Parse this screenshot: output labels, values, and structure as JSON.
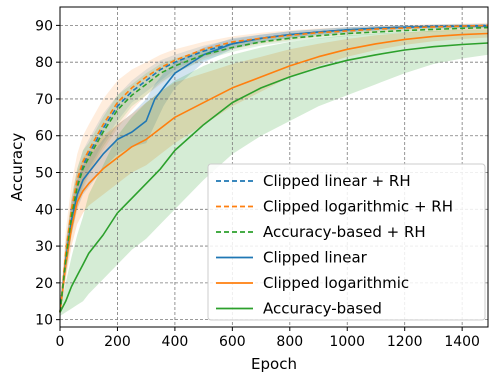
{
  "chart_data": {
    "type": "line",
    "xlabel": "Epoch",
    "ylabel": "Accuracy",
    "xlim": [
      0,
      1490
    ],
    "ylim": [
      8,
      95
    ],
    "xticks": [
      0,
      200,
      400,
      600,
      800,
      1000,
      1200,
      1400
    ],
    "yticks": [
      10,
      20,
      30,
      40,
      50,
      60,
      70,
      80,
      90
    ],
    "grid": true,
    "legend_position": "lower-right",
    "series": [
      {
        "name": "Clipped linear + RH",
        "color": "#1f77b4",
        "dash": true,
        "x": [
          0,
          20,
          40,
          60,
          80,
          100,
          150,
          200,
          250,
          300,
          350,
          400,
          500,
          600,
          700,
          800,
          900,
          1000,
          1100,
          1200,
          1300,
          1400,
          1490
        ],
        "y": [
          12,
          27,
          39,
          47,
          52,
          55,
          62,
          68,
          72,
          75,
          78,
          80,
          83,
          85,
          86.5,
          87.5,
          88.2,
          88.8,
          89.2,
          89.5,
          89.7,
          89.8,
          90
        ],
        "lower": [
          11,
          23,
          34,
          42,
          47,
          51,
          58,
          64,
          69,
          72,
          75,
          78,
          81.5,
          83.8,
          85.5,
          86.6,
          87.5,
          88.1,
          88.6,
          89,
          89.2,
          89.3,
          89.5
        ],
        "upper": [
          13,
          31,
          43,
          51,
          56,
          59,
          66,
          71,
          75,
          78,
          80.5,
          82,
          84.5,
          86.2,
          87.5,
          88.4,
          89,
          89.5,
          89.8,
          90,
          90.2,
          90.3,
          90.5
        ]
      },
      {
        "name": "Clipped logarithmic + RH",
        "color": "#ff7f0e",
        "dash": true,
        "x": [
          0,
          20,
          40,
          60,
          80,
          100,
          150,
          200,
          250,
          300,
          350,
          400,
          500,
          600,
          700,
          800,
          900,
          1000,
          1100,
          1200,
          1300,
          1400,
          1490
        ],
        "y": [
          12,
          28,
          40,
          48,
          53,
          56,
          63,
          69,
          73,
          76,
          78.5,
          80.5,
          83.5,
          85.5,
          86.5,
          87.3,
          88,
          88.5,
          89,
          89.3,
          89.6,
          89.8,
          90
        ],
        "lower": [
          11,
          22,
          33,
          40,
          45,
          49,
          56,
          62,
          67,
          71,
          74,
          77,
          81,
          83.5,
          85,
          86,
          86.9,
          87.5,
          88,
          88.4,
          88.7,
          89,
          89.2
        ],
        "upper": [
          13,
          34,
          47,
          55,
          60,
          63,
          70,
          75,
          78,
          80,
          82,
          83.5,
          85.5,
          87,
          88,
          88.7,
          89.2,
          89.5,
          89.9,
          90.1,
          90.3,
          90.5,
          90.7
        ]
      },
      {
        "name": "Accuracy-based + RH",
        "color": "#2ca02c",
        "dash": true,
        "x": [
          0,
          20,
          40,
          60,
          80,
          100,
          150,
          200,
          250,
          300,
          350,
          400,
          500,
          600,
          700,
          800,
          900,
          1000,
          1100,
          1200,
          1300,
          1400,
          1490
        ],
        "y": [
          12,
          26,
          38,
          46,
          51,
          54,
          61,
          67,
          71,
          74,
          77,
          79,
          82,
          84,
          85.5,
          86.5,
          87.2,
          87.8,
          88.2,
          88.6,
          88.9,
          89.2,
          89.4
        ],
        "lower": [
          11,
          22,
          33,
          41,
          46,
          50,
          57,
          63,
          68,
          71,
          74.5,
          77,
          80.5,
          82.8,
          84.5,
          85.6,
          86.4,
          87.1,
          87.6,
          88,
          88.3,
          88.6,
          88.8
        ],
        "upper": [
          13,
          30,
          43,
          51,
          56,
          58,
          65,
          71,
          74,
          77,
          79.5,
          81,
          83.5,
          85.2,
          86.5,
          87.4,
          88,
          88.5,
          88.8,
          89.2,
          89.5,
          89.8,
          90
        ]
      },
      {
        "name": "Clipped linear",
        "color": "#1f77b4",
        "dash": false,
        "x": [
          0,
          20,
          40,
          60,
          80,
          100,
          150,
          200,
          250,
          300,
          330,
          360,
          400,
          500,
          600,
          700,
          800,
          900,
          1000,
          1100,
          1200,
          1300,
          1400,
          1490
        ],
        "y": [
          12,
          26,
          37,
          44,
          48,
          50,
          55,
          59,
          61,
          64,
          70,
          73,
          77,
          82,
          85,
          86.5,
          87.5,
          88.2,
          88.8,
          89.2,
          89.5,
          89.7,
          89.8,
          89.8
        ],
        "lower": [
          11,
          23,
          33,
          40,
          44,
          46,
          51,
          55,
          57,
          58,
          63,
          68,
          73,
          80,
          83.5,
          85.5,
          86.6,
          87.4,
          88.1,
          88.6,
          89,
          89.2,
          89.3,
          89.3
        ],
        "upper": [
          13,
          29,
          41,
          48,
          52,
          54,
          59,
          63,
          66,
          70,
          74,
          77,
          80,
          84,
          86.5,
          87.5,
          88.4,
          89,
          89.5,
          89.8,
          90,
          90.2,
          90.3,
          90.3
        ]
      },
      {
        "name": "Clipped logarithmic",
        "color": "#ff7f0e",
        "dash": false,
        "x": [
          0,
          20,
          40,
          60,
          80,
          100,
          150,
          200,
          250,
          300,
          350,
          400,
          500,
          600,
          700,
          800,
          900,
          1000,
          1100,
          1200,
          1300,
          1400,
          1490
        ],
        "y": [
          12,
          25,
          35,
          42,
          45,
          47,
          51,
          54,
          57,
          59,
          62,
          65,
          69,
          73,
          76,
          79,
          81.5,
          83.5,
          85,
          86.2,
          87,
          87.5,
          87.8
        ],
        "lower": [
          11,
          21,
          30,
          36,
          39,
          41,
          44,
          47,
          50,
          52,
          55,
          58,
          63,
          68,
          72,
          76,
          79,
          81.5,
          83.3,
          84.7,
          85.7,
          86.3,
          86.7
        ],
        "upper": [
          13,
          31,
          42,
          50,
          54,
          56,
          60,
          63,
          66,
          69,
          72,
          74.5,
          77,
          79.5,
          81.5,
          83.5,
          85,
          86.3,
          87.3,
          88,
          88.6,
          89,
          89.2
        ]
      },
      {
        "name": "Accuracy-based",
        "color": "#2ca02c",
        "dash": false,
        "x": [
          0,
          20,
          40,
          60,
          80,
          100,
          150,
          200,
          250,
          300,
          350,
          400,
          500,
          600,
          700,
          800,
          900,
          1000,
          1100,
          1200,
          1300,
          1400,
          1490
        ],
        "y": [
          12,
          15,
          19,
          22,
          25,
          28,
          33,
          39,
          43,
          47,
          51,
          56,
          63,
          69,
          73,
          76,
          78.5,
          80.5,
          82,
          83.3,
          84.2,
          84.8,
          85.2
        ],
        "lower": [
          11,
          12,
          13,
          14,
          15,
          17,
          21,
          25,
          29,
          32,
          36,
          40,
          48,
          55,
          60,
          64,
          68,
          71,
          74,
          77,
          79.5,
          81,
          82
        ],
        "upper": [
          13,
          20,
          27,
          33,
          38,
          44,
          52,
          60,
          65,
          69,
          72,
          75,
          79,
          82,
          84,
          85.5,
          86.5,
          87.3,
          87.8,
          88.2,
          88.5,
          88.7,
          88.8
        ]
      }
    ]
  }
}
